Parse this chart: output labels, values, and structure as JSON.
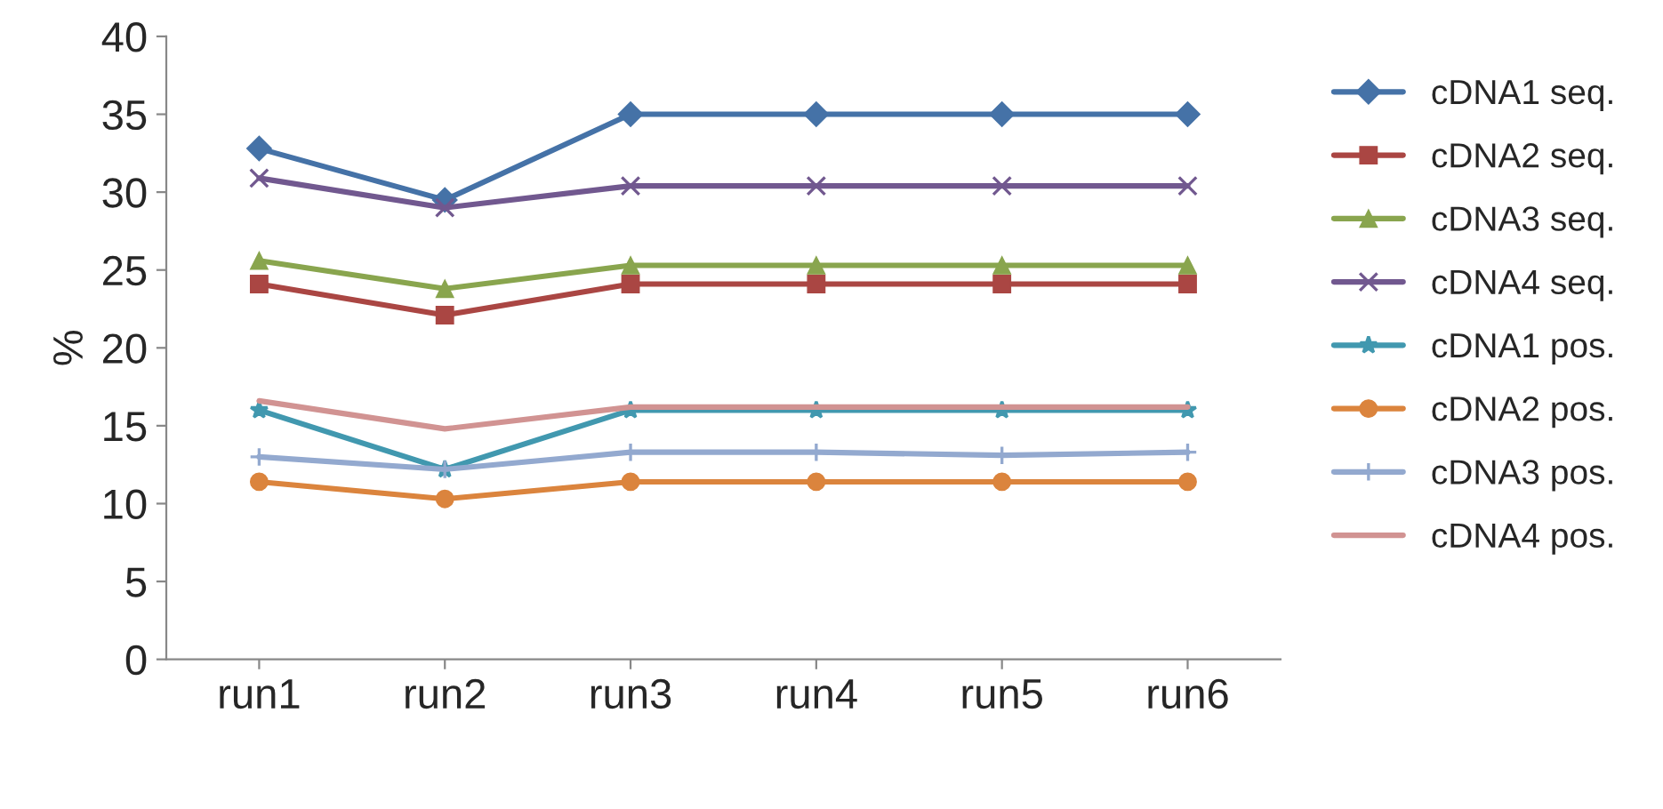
{
  "chart_data": {
    "type": "line",
    "ylabel": "%",
    "categories": [
      "run1",
      "run2",
      "run3",
      "run4",
      "run5",
      "run6"
    ],
    "series": [
      {
        "name": "cDNA1 seq.",
        "color": "#4572a7",
        "marker": "diamond",
        "values": [
          32.8,
          29.5,
          35.0,
          35.0,
          35.0,
          35.0
        ]
      },
      {
        "name": "cDNA2 seq.",
        "color": "#aa4643",
        "marker": "square",
        "values": [
          24.1,
          22.1,
          24.1,
          24.1,
          24.1,
          24.1
        ]
      },
      {
        "name": "cDNA3 seq.",
        "color": "#89a54e",
        "marker": "triangle",
        "values": [
          25.6,
          23.8,
          25.3,
          25.3,
          25.3,
          25.3
        ]
      },
      {
        "name": "cDNA4 seq.",
        "color": "#71588f",
        "marker": "cross",
        "values": [
          30.9,
          29.0,
          30.4,
          30.4,
          30.4,
          30.4
        ]
      },
      {
        "name": "cDNA1 pos.",
        "color": "#4198af",
        "marker": "star",
        "values": [
          16.0,
          12.2,
          16.0,
          16.0,
          16.0,
          16.0
        ]
      },
      {
        "name": "cDNA2 pos.",
        "color": "#db843d",
        "marker": "circle",
        "values": [
          11.4,
          10.3,
          11.4,
          11.4,
          11.4,
          11.4
        ]
      },
      {
        "name": "cDNA3 pos.",
        "color": "#93a9cf",
        "marker": "plus",
        "values": [
          13.0,
          12.2,
          13.3,
          13.3,
          13.1,
          13.3
        ]
      },
      {
        "name": "cDNA4 pos.",
        "color": "#d19392",
        "marker": "none",
        "values": [
          16.6,
          14.8,
          16.2,
          16.2,
          16.2,
          16.2
        ]
      }
    ],
    "ylim": [
      0,
      40
    ],
    "yticks": [
      0,
      5,
      10,
      15,
      20,
      25,
      30,
      35,
      40
    ],
    "grid": false,
    "legend": "right",
    "line_style": "solid"
  }
}
